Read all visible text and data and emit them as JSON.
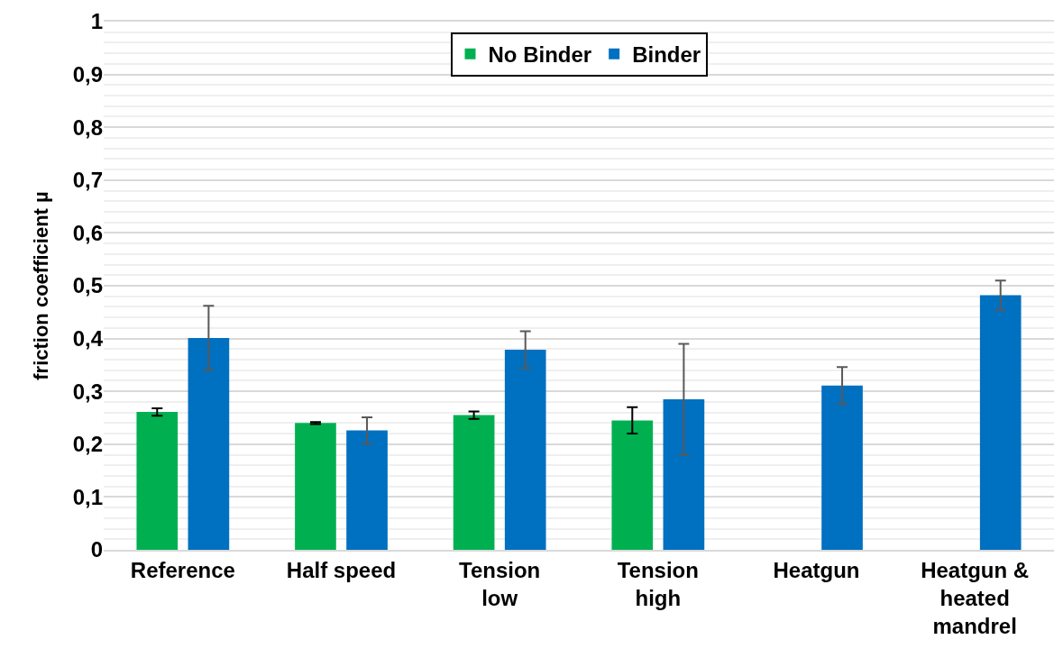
{
  "chart_data": {
    "type": "bar",
    "categories": [
      "Reference",
      "Half speed",
      "Tension low",
      "Tension high",
      "Heatgun",
      "Heatgun & heated mandrel"
    ],
    "ylabel": "friction coefficient µ",
    "series": [
      {
        "name": "No Binder",
        "color": "#00b050",
        "values": [
          0.261,
          0.24,
          0.255,
          0.245,
          null,
          null
        ],
        "errors": [
          0.007,
          0.002,
          0.007,
          0.025,
          null,
          null
        ]
      },
      {
        "name": "Binder",
        "color": "#0070c0",
        "values": [
          0.401,
          0.226,
          0.379,
          0.285,
          0.311,
          0.482
        ],
        "errors": [
          0.061,
          0.025,
          0.035,
          0.105,
          0.035,
          0.028
        ]
      }
    ],
    "ylim": [
      0,
      1
    ],
    "yticks": [
      0,
      {
        "value": 0.02,
        "label": null
      },
      {
        "value": 0.04,
        "label": null
      },
      {
        "value": 0.06,
        "label": null
      },
      {
        "value": 0.08,
        "label": null
      },
      {
        "value": 0.1,
        "label": "0,1"
      },
      {
        "value": 0.12,
        "label": null
      },
      {
        "value": 0.14,
        "label": null
      },
      {
        "value": 0.16,
        "label": null
      },
      {
        "value": 0.18,
        "label": null
      },
      {
        "value": 0.2,
        "label": "0,2"
      },
      {
        "value": 0.22,
        "label": null
      },
      {
        "value": 0.24,
        "label": null
      },
      {
        "value": 0.26,
        "label": null
      },
      {
        "value": 0.28,
        "label": null
      },
      {
        "value": 0.3,
        "label": "0,3"
      },
      {
        "value": 0.32,
        "label": null
      },
      {
        "value": 0.34,
        "label": null
      },
      {
        "value": 0.36,
        "label": null
      },
      {
        "value": 0.38,
        "label": null
      },
      {
        "value": 0.4,
        "label": "0,4"
      },
      {
        "value": 0.42,
        "label": null
      },
      {
        "value": 0.44,
        "label": null
      },
      {
        "value": 0.46,
        "label": null
      },
      {
        "value": 0.48,
        "label": null
      },
      {
        "value": 0.5,
        "label": "0,5"
      },
      {
        "value": 0.52,
        "label": null
      },
      {
        "value": 0.54,
        "label": null
      },
      {
        "value": 0.56,
        "label": null
      },
      {
        "value": 0.58,
        "label": null
      },
      {
        "value": 0.6,
        "label": "0,6"
      },
      {
        "value": 0.62,
        "label": null
      },
      {
        "value": 0.64,
        "label": null
      },
      {
        "value": 0.66,
        "label": null
      },
      {
        "value": 0.68,
        "label": null
      },
      {
        "value": 0.7,
        "label": "0,7"
      },
      {
        "value": 0.72,
        "label": null
      },
      {
        "value": 0.74,
        "label": null
      },
      {
        "value": 0.76,
        "label": null
      },
      {
        "value": 0.78,
        "label": null
      },
      {
        "value": 0.8,
        "label": "0,8"
      },
      {
        "value": 0.82,
        "label": null
      },
      {
        "value": 0.84,
        "label": null
      },
      {
        "value": 0.86,
        "label": null
      },
      {
        "value": 0.88,
        "label": null
      },
      {
        "value": 0.9,
        "label": "0,9"
      },
      {
        "value": 0.92,
        "label": null
      },
      {
        "value": 0.94,
        "label": null
      },
      {
        "value": 0.96,
        "label": null
      },
      {
        "value": 0.98,
        "label": null
      },
      1
    ],
    "grid": true,
    "legend": "top"
  }
}
